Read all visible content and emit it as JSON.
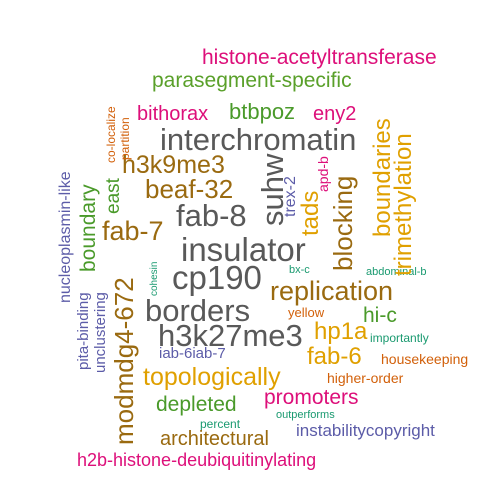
{
  "cloud": {
    "words": {
      "histone_acetyltransferase": "histone-acetyltransferase",
      "parasegment_specific": "parasegment-specific",
      "bithorax": "bithorax",
      "btbpoz": "btbpoz",
      "eny2": "eny2",
      "interchromatin": "interchromatin",
      "h3k9me3": "h3k9me3",
      "beaf_32": "beaf-32",
      "fab_8": "fab-8",
      "fab_7": "fab-7",
      "insulator": "insulator",
      "cp190": "cp190",
      "replication": "replication",
      "borders": "borders",
      "hi_c": "hi-c",
      "yellow": "yellow",
      "h3k27me3": "h3k27me3",
      "hp1a": "hp1a",
      "importantly": "importantly",
      "iab_6iab_7": "iab-6iab-7",
      "fab_6": "fab-6",
      "housekeeping": "housekeeping",
      "topologically": "topologically",
      "higher_order": "higher-order",
      "promoters": "promoters",
      "depleted": "depleted",
      "outperforms": "outperforms",
      "percent": "percent",
      "instabilitycopyright": "instabilitycopyright",
      "architectural": "architectural",
      "h2b_histone_deubiquitinylating": "h2b-histone-deubiquitinylating",
      "bx_c": "bx-c",
      "abdominal_b": "abdominal-b",
      "co_localize": "co-localize",
      "partition": "partition",
      "east": "east",
      "boundary": "boundary",
      "nucleoplasmin_like": "nucleoplasmin-like",
      "modmdg4_672": "modmdg4-672",
      "pita_binding": "pita-binding",
      "unclustering": "unclustering",
      "cohesin": "cohesin",
      "suhw": "suhw",
      "trex_2": "trex-2",
      "tads": "tads",
      "apd_b": "apd-b",
      "blocking": "blocking",
      "boundaries": "boundaries",
      "trimethylation": "trimethylation"
    }
  },
  "colors": {
    "gray": "#595959",
    "brown": "#9a6a10",
    "gold": "#e0a000",
    "green": "#4a9a2a",
    "magenta": "#dd0f7a",
    "purple": "#5c5ca8",
    "orange": "#d2600a",
    "teal": "#1a9a70"
  }
}
